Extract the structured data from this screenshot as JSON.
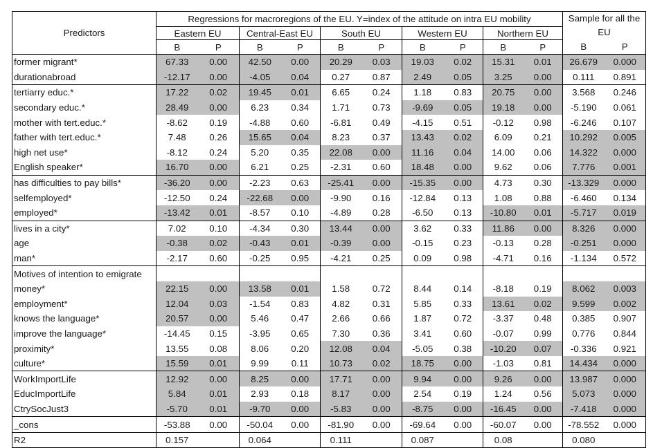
{
  "header": {
    "predictors": "Predictors",
    "regressions_title": "Regressions for macroregions of the EU. Y=index of the attitude on intra EU mobility",
    "sample_all": "Sample for all the EU",
    "groups": [
      "Eastern EU",
      "Central-East EU",
      "South EU",
      "Western EU",
      "Northern EU"
    ],
    "b_label": "B",
    "p_label": "P"
  },
  "shade_color": "#c0c0c0",
  "rows": [
    {
      "label": "former migrant*",
      "cells": [
        [
          "67.33",
          "0.00",
          1
        ],
        [
          "42.50",
          "0.00",
          1
        ],
        [
          "20.29",
          "0.03",
          1
        ],
        [
          "19.03",
          "0.02",
          1
        ],
        [
          "15.31",
          "0.01",
          1
        ],
        [
          "26.679",
          "0.000",
          1
        ]
      ]
    },
    {
      "label": "durationabroad",
      "end": 1,
      "cells": [
        [
          "-12.17",
          "0.00",
          1
        ],
        [
          "-4.05",
          "0.04",
          1
        ],
        [
          "0.27",
          "0.87",
          0
        ],
        [
          "2.49",
          "0.05",
          1
        ],
        [
          "3.25",
          "0.00",
          1
        ],
        [
          "0.111",
          "0.891",
          0
        ]
      ]
    },
    {
      "label": "tertiarry educ.*",
      "cells": [
        [
          "17.22",
          "0.02",
          1
        ],
        [
          "19.45",
          "0.01",
          1
        ],
        [
          "6.65",
          "0.24",
          0
        ],
        [
          "1.18",
          "0.83",
          0
        ],
        [
          "20.75",
          "0.00",
          1
        ],
        [
          "3.568",
          "0.246",
          0
        ]
      ]
    },
    {
      "label": "secondary educ.*",
      "cells": [
        [
          "28.49",
          "0.00",
          1
        ],
        [
          "6.23",
          "0.34",
          0
        ],
        [
          "1.71",
          "0.73",
          0
        ],
        [
          "-9.69",
          "0.05",
          1
        ],
        [
          "19.18",
          "0.00",
          1
        ],
        [
          "-5.190",
          "0.061",
          0
        ]
      ]
    },
    {
      "label": "mother with tert.educ.*",
      "cells": [
        [
          "-8.62",
          "0.19",
          0
        ],
        [
          "-4.88",
          "0.60",
          0
        ],
        [
          "-6.81",
          "0.49",
          0
        ],
        [
          "-4.15",
          "0.51",
          0
        ],
        [
          "-0.12",
          "0.98",
          0
        ],
        [
          "-6.246",
          "0.107",
          0
        ]
      ]
    },
    {
      "label": "father with tert.educ.*",
      "cells": [
        [
          "7.48",
          "0.26",
          0
        ],
        [
          "15.65",
          "0.04",
          1
        ],
        [
          "8.23",
          "0.37",
          0
        ],
        [
          "13.43",
          "0.02",
          1
        ],
        [
          "6.09",
          "0.21",
          0
        ],
        [
          "10.292",
          "0.005",
          1
        ]
      ]
    },
    {
      "label": "high net use*",
      "cells": [
        [
          "-8.12",
          "0.24",
          0
        ],
        [
          "5.20",
          "0.35",
          0
        ],
        [
          "22.08",
          "0.00",
          1
        ],
        [
          "11.16",
          "0.04",
          1
        ],
        [
          "14.00",
          "0.06",
          0
        ],
        [
          "14.322",
          "0.000",
          1
        ]
      ]
    },
    {
      "label": "English speaker*",
      "end": 1,
      "cells": [
        [
          "16.70",
          "0.00",
          1
        ],
        [
          "6.21",
          "0.25",
          0
        ],
        [
          "-2.31",
          "0.60",
          0
        ],
        [
          "18.48",
          "0.00",
          1
        ],
        [
          "9.62",
          "0.06",
          0
        ],
        [
          "7.776",
          "0.001",
          1
        ]
      ]
    },
    {
      "label": "has difficulties to pay bills*",
      "cells": [
        [
          "-36.20",
          "0.00",
          1
        ],
        [
          "-2.23",
          "0.63",
          0
        ],
        [
          "-25.41",
          "0.00",
          1
        ],
        [
          "-15.35",
          "0.00",
          1
        ],
        [
          "4.73",
          "0.30",
          0
        ],
        [
          "-13.329",
          "0.000",
          1
        ]
      ]
    },
    {
      "label": "selfemployed*",
      "cells": [
        [
          "-12.50",
          "0.24",
          0
        ],
        [
          "-22.68",
          "0.00",
          1
        ],
        [
          "-9.90",
          "0.16",
          0
        ],
        [
          "-12.84",
          "0.13",
          0
        ],
        [
          "1.08",
          "0.88",
          0
        ],
        [
          "-6.460",
          "0.134",
          0
        ]
      ]
    },
    {
      "label": "employed*",
      "end": 1,
      "cells": [
        [
          "-13.42",
          "0.01",
          1
        ],
        [
          "-8.57",
          "0.10",
          0
        ],
        [
          "-4.89",
          "0.28",
          0
        ],
        [
          "-6.50",
          "0.13",
          0
        ],
        [
          "-10.80",
          "0.01",
          1
        ],
        [
          "-5.717",
          "0.019",
          1
        ]
      ]
    },
    {
      "label": "lives in a city*",
      "cells": [
        [
          "7.02",
          "0.10",
          0
        ],
        [
          "-4.34",
          "0.30",
          0
        ],
        [
          "13.44",
          "0.00",
          1
        ],
        [
          "3.62",
          "0.33",
          0
        ],
        [
          "11.86",
          "0.00",
          1
        ],
        [
          "8.326",
          "0.000",
          1
        ]
      ]
    },
    {
      "label": "age",
      "cells": [
        [
          "-0.38",
          "0.02",
          1
        ],
        [
          "-0.43",
          "0.01",
          1
        ],
        [
          "-0.39",
          "0.00",
          1
        ],
        [
          "-0.15",
          "0.23",
          0
        ],
        [
          "-0.13",
          "0.28",
          0
        ],
        [
          "-0.251",
          "0.000",
          1
        ]
      ]
    },
    {
      "label": "man*",
      "end": 1,
      "cells": [
        [
          "-2.17",
          "0.60",
          0
        ],
        [
          "-0.25",
          "0.95",
          0
        ],
        [
          "-4.21",
          "0.25",
          0
        ],
        [
          "0.09",
          "0.98",
          0
        ],
        [
          "-4.71",
          "0.16",
          0
        ],
        [
          "-1.134",
          "0.572",
          0
        ]
      ]
    },
    {
      "label": "Motives of intention to emigrate",
      "section": 1,
      "cells": [
        [
          "",
          "",
          0
        ],
        [
          "",
          "",
          0
        ],
        [
          "",
          "",
          0
        ],
        [
          "",
          "",
          0
        ],
        [
          "",
          "",
          0
        ],
        [
          "",
          "",
          0
        ]
      ]
    },
    {
      "label": "money*",
      "cells": [
        [
          "22.15",
          "0.00",
          1
        ],
        [
          "13.58",
          "0.01",
          1
        ],
        [
          "1.58",
          "0.72",
          0
        ],
        [
          "8.44",
          "0.14",
          0
        ],
        [
          "-8.18",
          "0.19",
          0
        ],
        [
          "8.062",
          "0.003",
          1
        ]
      ]
    },
    {
      "label": "employment*",
      "cells": [
        [
          "12.04",
          "0.03",
          1
        ],
        [
          "-1.54",
          "0.83",
          0
        ],
        [
          "4.82",
          "0.31",
          0
        ],
        [
          "5.85",
          "0.33",
          0
        ],
        [
          "13.61",
          "0.02",
          1
        ],
        [
          "9.599",
          "0.002",
          1
        ]
      ]
    },
    {
      "label": "knows the language*",
      "cells": [
        [
          "20.57",
          "0.00",
          1
        ],
        [
          "5.46",
          "0.47",
          0
        ],
        [
          "2.66",
          "0.66",
          0
        ],
        [
          "1.87",
          "0.72",
          0
        ],
        [
          "-3.37",
          "0.48",
          0
        ],
        [
          "0.385",
          "0.907",
          0
        ]
      ]
    },
    {
      "label": "improve the language*",
      "cells": [
        [
          "-14.45",
          "0.15",
          0
        ],
        [
          "-3.95",
          "0.65",
          0
        ],
        [
          "7.30",
          "0.36",
          0
        ],
        [
          "3.41",
          "0.60",
          0
        ],
        [
          "-0.07",
          "0.99",
          0
        ],
        [
          "0.776",
          "0.844",
          0
        ]
      ]
    },
    {
      "label": "proximity*",
      "cells": [
        [
          "13.55",
          "0.08",
          0
        ],
        [
          "8.06",
          "0.20",
          0
        ],
        [
          "12.08",
          "0.04",
          1
        ],
        [
          "-5.05",
          "0.38",
          0
        ],
        [
          "-10.20",
          "0.07",
          1
        ],
        [
          "-0.336",
          "0.921",
          0
        ]
      ]
    },
    {
      "label": "culture*",
      "end": 1,
      "cells": [
        [
          "15.59",
          "0.01",
          1
        ],
        [
          "9.99",
          "0.11",
          0
        ],
        [
          "10.73",
          "0.02",
          1
        ],
        [
          "18.75",
          "0.00",
          1
        ],
        [
          "-1.03",
          "0.81",
          0
        ],
        [
          "14.434",
          "0.000",
          1
        ]
      ]
    },
    {
      "label": "WorkImportLife",
      "cells": [
        [
          "12.92",
          "0.00",
          1
        ],
        [
          "8.25",
          "0.00",
          1
        ],
        [
          "17.71",
          "0.00",
          1
        ],
        [
          "9.94",
          "0.00",
          1
        ],
        [
          "9.26",
          "0.00",
          1
        ],
        [
          "13.987",
          "0.000",
          1
        ]
      ]
    },
    {
      "label": "EducImportLife",
      "cells": [
        [
          "5.84",
          "0.01",
          1
        ],
        [
          "2.93",
          "0.18",
          0
        ],
        [
          "8.17",
          "0.00",
          1
        ],
        [
          "2.54",
          "0.19",
          0
        ],
        [
          "1.24",
          "0.56",
          0
        ],
        [
          "5.073",
          "0.000",
          1
        ]
      ]
    },
    {
      "label": "CtrySocJust3",
      "end": 1,
      "cells": [
        [
          "-5.70",
          "0.01",
          1
        ],
        [
          "-9.70",
          "0.00",
          1
        ],
        [
          "-5.83",
          "0.00",
          1
        ],
        [
          "-8.75",
          "0.00",
          1
        ],
        [
          "-16.45",
          "0.00",
          1
        ],
        [
          "-7.418",
          "0.000",
          1
        ]
      ]
    },
    {
      "label": "_cons",
      "end": 1,
      "cells": [
        [
          "-53.88",
          "0.00",
          0
        ],
        [
          "-50.04",
          "0.00",
          0
        ],
        [
          "-81.90",
          "0.00",
          0
        ],
        [
          "-69.64",
          "0.00",
          0
        ],
        [
          "-60.07",
          "0.00",
          0
        ],
        [
          "-78.552",
          "0.000",
          0
        ]
      ]
    },
    {
      "label": "R2",
      "end": 1,
      "cells": [
        [
          "0.157",
          "",
          0
        ],
        [
          "0.064",
          "",
          0
        ],
        [
          "0.111",
          "",
          0
        ],
        [
          "0.087",
          "",
          0
        ],
        [
          "0.08",
          "",
          0
        ],
        [
          "0.080",
          "",
          0
        ]
      ]
    }
  ]
}
